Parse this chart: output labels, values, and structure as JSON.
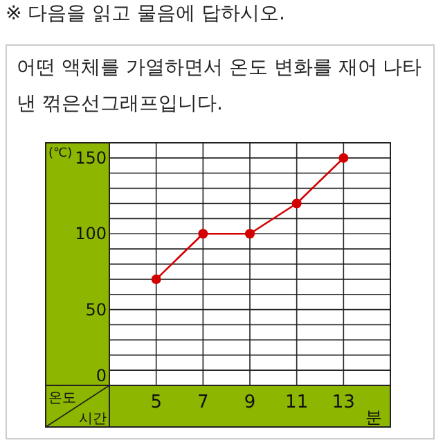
{
  "chart_data": {
    "type": "line",
    "title": "※ 다음을 읽고 물음에 답하시오.",
    "subtitle": "어떤 액체를 가열하면서 온도 변화를 재어 나타낸 꺾은선그래프입니다.",
    "xlabel": "분",
    "ylabel": "(℃)",
    "annotations": [
      "온도",
      "시간"
    ],
    "x": [
      5,
      7,
      9,
      11,
      13
    ],
    "series": [
      {
        "color": "#d40000",
        "values": [
          70,
          100,
          100,
          120,
          150
        ]
      }
    ],
    "xlim": [
      3,
      15
    ],
    "ylim": [
      0,
      160
    ],
    "xticks": [
      5,
      7,
      9,
      11,
      13
    ],
    "yticks": [
      0,
      {
        "value": 10,
        "label": null
      },
      {
        "value": 20,
        "label": null
      },
      {
        "value": 30,
        "label": null
      },
      {
        "value": 40,
        "label": null
      },
      50,
      {
        "value": 60,
        "label": null
      },
      {
        "value": 70,
        "label": null
      },
      {
        "value": 80,
        "label": null
      },
      {
        "value": 90,
        "label": null
      },
      100,
      {
        "value": 110,
        "label": null
      },
      {
        "value": 120,
        "label": null
      },
      {
        "value": 130,
        "label": null
      },
      {
        "value": 140,
        "label": null
      },
      150
    ],
    "grid": true,
    "marker": "circle",
    "line_style": "solid"
  }
}
